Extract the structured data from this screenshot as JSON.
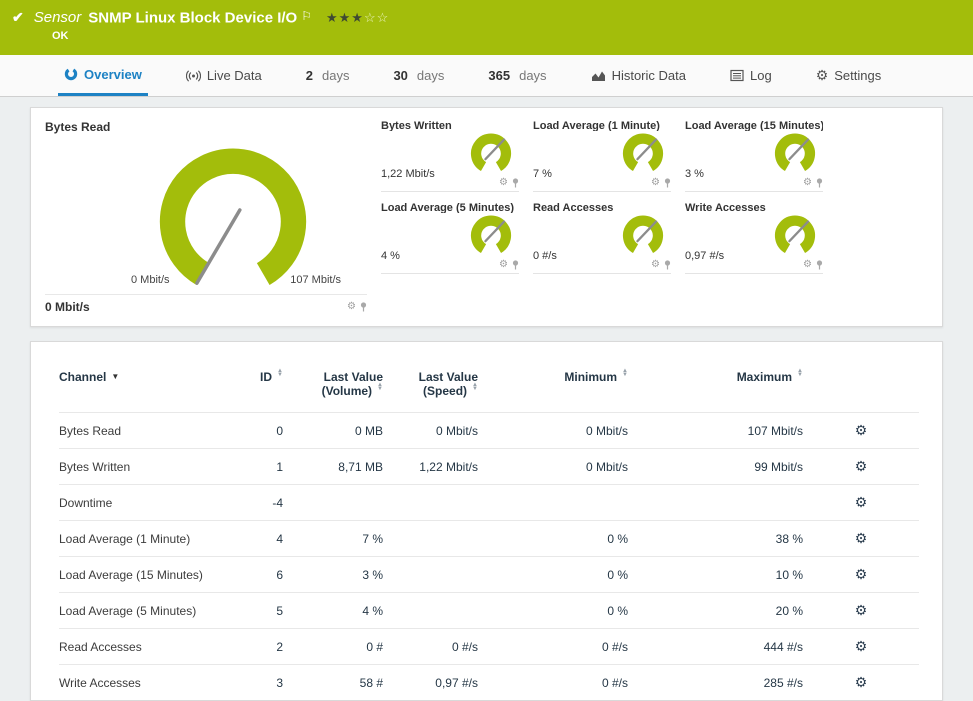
{
  "header": {
    "kind": "Sensor",
    "title": "SNMP Linux Block Device I/O",
    "status": "OK",
    "stars_filled": "★★★",
    "stars_empty": "☆☆"
  },
  "tabs": {
    "overview": "Overview",
    "live_data": "Live Data",
    "d2": {
      "num": "2",
      "unit": "days"
    },
    "d30": {
      "num": "30",
      "unit": "days"
    },
    "d365": {
      "num": "365",
      "unit": "days"
    },
    "historic": "Historic Data",
    "log": "Log",
    "settings": "Settings"
  },
  "gauges": {
    "main": {
      "label": "Bytes Read",
      "value": "0 Mbit/s",
      "scale_min": "0 Mbit/s",
      "scale_max": "107 Mbit/s"
    },
    "small": [
      {
        "label": "Bytes Written",
        "value": "1,22 Mbit/s"
      },
      {
        "label": "Load Average (1 Minute)",
        "value": "7 %"
      },
      {
        "label": "Load Average (15 Minutes)",
        "value": "3 %"
      },
      {
        "label": "Load Average (5 Minutes)",
        "value": "4 %"
      },
      {
        "label": "Read Accesses",
        "value": "0 #/s"
      },
      {
        "label": "Write Accesses",
        "value": "0,97 #/s"
      }
    ]
  },
  "table": {
    "headers": {
      "channel": "Channel",
      "id": "ID",
      "last_volume": "Last Value (Volume)",
      "last_speed": "Last Value (Speed)",
      "minimum": "Minimum",
      "maximum": "Maximum"
    },
    "rows": [
      {
        "channel": "Bytes Read",
        "id": "0",
        "volume": "0 MB",
        "speed": "0 Mbit/s",
        "min": "0 Mbit/s",
        "max": "107 Mbit/s"
      },
      {
        "channel": "Bytes Written",
        "id": "1",
        "volume": "8,71 MB",
        "speed": "1,22 Mbit/s",
        "min": "0 Mbit/s",
        "max": "99 Mbit/s"
      },
      {
        "channel": "Downtime",
        "id": "-4",
        "volume": "",
        "speed": "",
        "min": "",
        "max": ""
      },
      {
        "channel": "Load Average (1 Minute)",
        "id": "4",
        "volume": "7 %",
        "speed": "",
        "min": "0 %",
        "max": "38 %"
      },
      {
        "channel": "Load Average (15 Minutes)",
        "id": "6",
        "volume": "3 %",
        "speed": "",
        "min": "0 %",
        "max": "10 %"
      },
      {
        "channel": "Load Average (5 Minutes)",
        "id": "5",
        "volume": "4 %",
        "speed": "",
        "min": "0 %",
        "max": "20 %"
      },
      {
        "channel": "Read Accesses",
        "id": "2",
        "volume": "0 #",
        "speed": "0 #/s",
        "min": "0 #/s",
        "max": "444 #/s"
      },
      {
        "channel": "Write Accesses",
        "id": "3",
        "volume": "58 #",
        "speed": "0,97 #/s",
        "min": "0 #/s",
        "max": "285 #/s"
      }
    ]
  },
  "icons": {
    "check": "✔",
    "flag": "⚐",
    "gear": "⚙",
    "sort_up": "▲",
    "sort_down": "▼"
  },
  "colors": {
    "brand_green": "#a3bd0b",
    "accent_blue": "#1d82c4",
    "needle_gray": "#8c8c8c"
  }
}
